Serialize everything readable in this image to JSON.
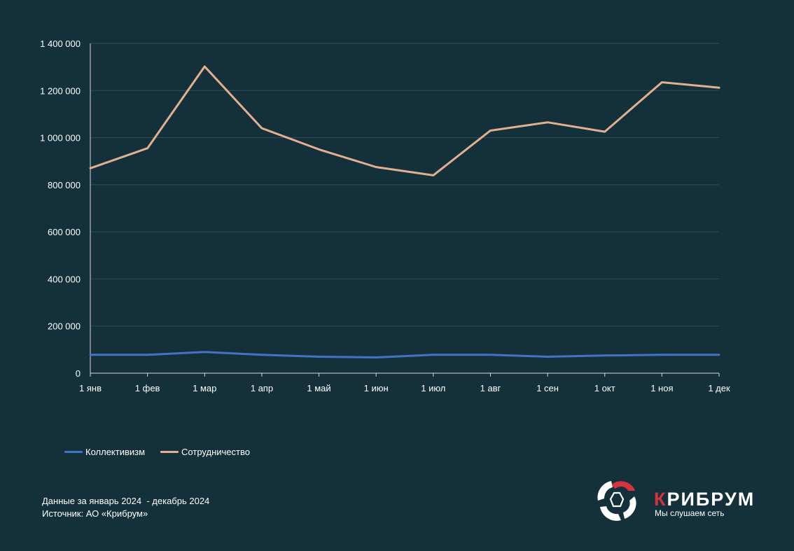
{
  "chart_data": {
    "type": "line",
    "categories": [
      "1 янв",
      "1 фев",
      "1 мар",
      "1 апр",
      "1 май",
      "1 июн",
      "1 июл",
      "1 авг",
      "1 сен",
      "1 окт",
      "1 ноя",
      "1 дек"
    ],
    "series": [
      {
        "name": "Коллективизм",
        "color": "#4472c4",
        "values": [
          78000,
          78000,
          90000,
          78000,
          70000,
          67000,
          78000,
          78000,
          70000,
          75000,
          78000,
          78000
        ]
      },
      {
        "name": "Сотрудничество",
        "color": "#e2b08e",
        "values": [
          870000,
          955000,
          1302000,
          1040000,
          950000,
          875000,
          840000,
          1030000,
          1065000,
          1025000,
          1235000,
          1212000
        ]
      }
    ],
    "y_ticks": [
      "0",
      "200 000",
      "400 000",
      "600 000",
      "800 000",
      "1 000 000",
      "1 200 000",
      "1 400 000"
    ],
    "ylim": [
      0,
      1400000
    ],
    "grid": true,
    "legend_position": "bottom-left"
  },
  "footnote": {
    "period": "Данные за январь 2024  - декабрь 2024",
    "source": "Источник: АО «Крибрум»"
  },
  "brand": {
    "name_first": "К",
    "name_rest": "РИБРУМ",
    "tagline": "Мы слушаем сеть",
    "accent": "#d6333d"
  }
}
